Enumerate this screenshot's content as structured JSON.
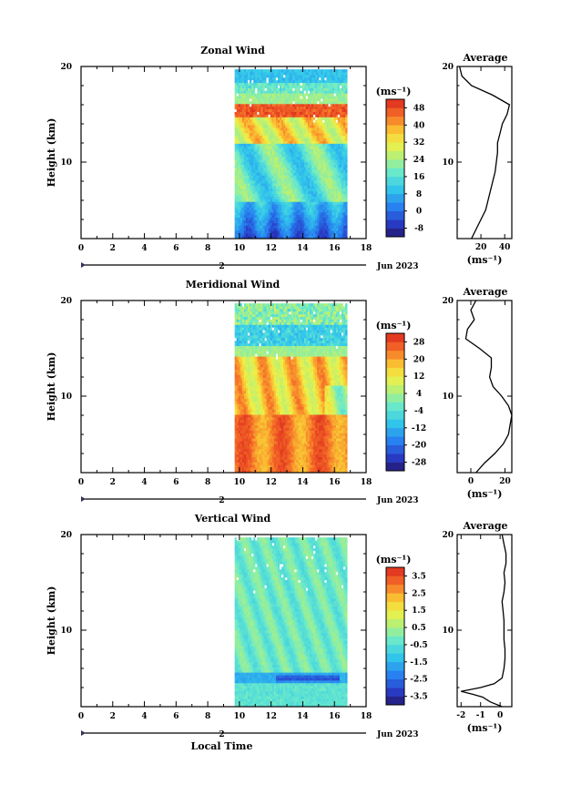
{
  "chart_data": [
    {
      "type": "heatmap",
      "name": "zonal",
      "title": "Zonal Wind",
      "ylabel": "Height (km)",
      "xlim": [
        0,
        18
      ],
      "ylim": [
        2,
        20
      ],
      "x_ticks": [
        0,
        2,
        4,
        6,
        8,
        10,
        12,
        14,
        16,
        18
      ],
      "y_ticks": [
        10,
        20
      ],
      "data_x_range": [
        9.7,
        16.8
      ],
      "date_label": "Jun 2023",
      "day_label": "2",
      "colorbar": {
        "unit": "(ms⁻¹)",
        "ticks": [
          -8,
          0,
          8,
          16,
          24,
          32,
          40,
          48
        ],
        "tick_labels": [
          "-8",
          "0",
          "8",
          "16",
          "24",
          "32",
          "40",
          "48"
        ],
        "range": [
          -12,
          52
        ]
      },
      "profile": {
        "title": "Average",
        "unit": "(ms⁻¹)",
        "x_ticks": [
          20,
          40
        ],
        "xlim": [
          0,
          46
        ],
        "heights": [
          2,
          3,
          4,
          5,
          6,
          7,
          8,
          9,
          10,
          11,
          12,
          13,
          14,
          15,
          16,
          17,
          18,
          19,
          20
        ],
        "values": [
          12,
          16,
          20,
          24,
          26,
          28,
          30,
          32,
          33,
          34,
          34,
          36,
          38,
          42,
          44,
          30,
          12,
          4,
          2
        ]
      }
    },
    {
      "type": "heatmap",
      "name": "meridional",
      "title": "Meridional Wind",
      "ylabel": "Height (km)",
      "xlim": [
        0,
        18
      ],
      "ylim": [
        2,
        20
      ],
      "x_ticks": [
        0,
        2,
        4,
        6,
        8,
        10,
        12,
        14,
        16,
        18
      ],
      "y_ticks": [
        10,
        20
      ],
      "data_x_range": [
        9.7,
        16.8
      ],
      "date_label": "Jun 2023",
      "day_label": "2",
      "colorbar": {
        "unit": "(ms⁻¹)",
        "ticks": [
          -28,
          -20,
          -12,
          -4,
          4,
          12,
          20,
          28
        ],
        "tick_labels": [
          "-28",
          "-20",
          "-12",
          "-4",
          "4",
          "12",
          "20",
          "28"
        ],
        "range": [
          -32,
          32
        ]
      },
      "profile": {
        "title": "Average",
        "unit": "(ms⁻¹)",
        "x_ticks": [
          0,
          20
        ],
        "xlim": [
          -8,
          24
        ],
        "heights": [
          2,
          3,
          4,
          5,
          6,
          7,
          8,
          9,
          10,
          11,
          12,
          13,
          14,
          15,
          16,
          17,
          18,
          19,
          20
        ],
        "values": [
          3,
          8,
          14,
          19,
          22,
          23,
          24,
          22,
          18,
          13,
          11,
          12,
          12,
          5,
          -3,
          -2,
          2,
          0,
          3
        ]
      }
    },
    {
      "type": "heatmap",
      "name": "vertical",
      "title": "Vertical Wind",
      "ylabel": "Height (km)",
      "xlabel": "Local Time",
      "xlim": [
        0,
        18
      ],
      "ylim": [
        2,
        20
      ],
      "x_ticks": [
        0,
        2,
        4,
        6,
        8,
        10,
        12,
        14,
        16,
        18
      ],
      "y_ticks": [
        10,
        20
      ],
      "data_x_range": [
        9.7,
        16.8
      ],
      "date_label": "Jun 2023",
      "day_label": "2",
      "colorbar": {
        "unit": "(ms⁻¹)",
        "ticks": [
          -3.5,
          -2.5,
          -1.5,
          -0.5,
          0.5,
          1.5,
          2.5,
          3.5
        ],
        "tick_labels": [
          "-3.5",
          "-2.5",
          "-1.5",
          "-0.5",
          "0.5",
          "1.5",
          "2.5",
          "3.5"
        ],
        "range": [
          -4,
          4
        ]
      },
      "profile": {
        "title": "Average",
        "unit": "(ms⁻¹)",
        "x_ticks": [
          -2,
          -1,
          0
        ],
        "x_tick_labels": [
          "-2",
          "-1",
          "0"
        ],
        "xlim": [
          -2.2,
          0.6
        ],
        "heights": [
          2,
          2.5,
          3,
          3.3,
          3.6,
          4,
          4.4,
          5,
          6,
          7,
          8,
          9,
          10,
          11,
          12,
          13,
          14,
          15,
          16,
          17,
          18,
          19,
          20
        ],
        "values": [
          0.1,
          -0.5,
          -0.9,
          -1.4,
          -2.0,
          -1.0,
          -0.3,
          0.1,
          0.2,
          0.25,
          0.25,
          0.2,
          0.2,
          0.2,
          0.15,
          0.1,
          0.2,
          0.25,
          0.2,
          0.3,
          0.3,
          0.2,
          0.1
        ]
      }
    }
  ]
}
